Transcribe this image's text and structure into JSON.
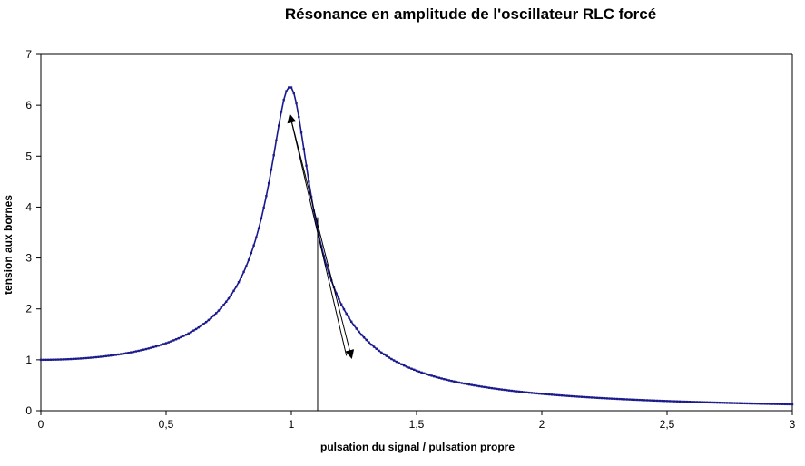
{
  "chart_data": {
    "type": "line",
    "title": "Résonance en amplitude de l'oscillateur RLC forcé",
    "xlabel": "pulsation du signal / pulsation propre",
    "ylabel": "tension aux bornes",
    "xlim": [
      0,
      3
    ],
    "ylim": [
      0,
      7
    ],
    "x_ticks": [
      "0",
      "0,5",
      "1",
      "1,5",
      "2",
      "2,5",
      "3"
    ],
    "y_ticks": [
      "0",
      "1",
      "2",
      "3",
      "4",
      "5",
      "6",
      "7"
    ],
    "grid": false,
    "legend": "none",
    "series_color": "#1a1a8c",
    "series": [
      {
        "model": "resonance",
        "amplitude_at_zero": 1.0,
        "peak_x": 1.0,
        "peak_y": 6.35,
        "x": [
          0,
          0.5,
          0.7,
          0.8,
          0.9,
          0.95,
          1.0,
          1.05,
          1.1,
          1.2,
          1.5,
          2.0,
          2.5,
          3.0
        ],
        "values": [
          1.0,
          1.33,
          1.93,
          2.72,
          4.5,
          5.9,
          6.35,
          5.0,
          3.5,
          2.35,
          0.85,
          0.33,
          0.19,
          0.12
        ]
      }
    ],
    "annotations": [
      {
        "type": "arrow",
        "from": [
          1.22,
          1.08
        ],
        "to": [
          0.995,
          5.8
        ]
      },
      {
        "type": "arrow",
        "from": [
          0.995,
          5.8
        ],
        "to": [
          1.24,
          1.05
        ]
      },
      {
        "type": "vline",
        "x": 1.105,
        "y_top": 3.8
      }
    ]
  }
}
